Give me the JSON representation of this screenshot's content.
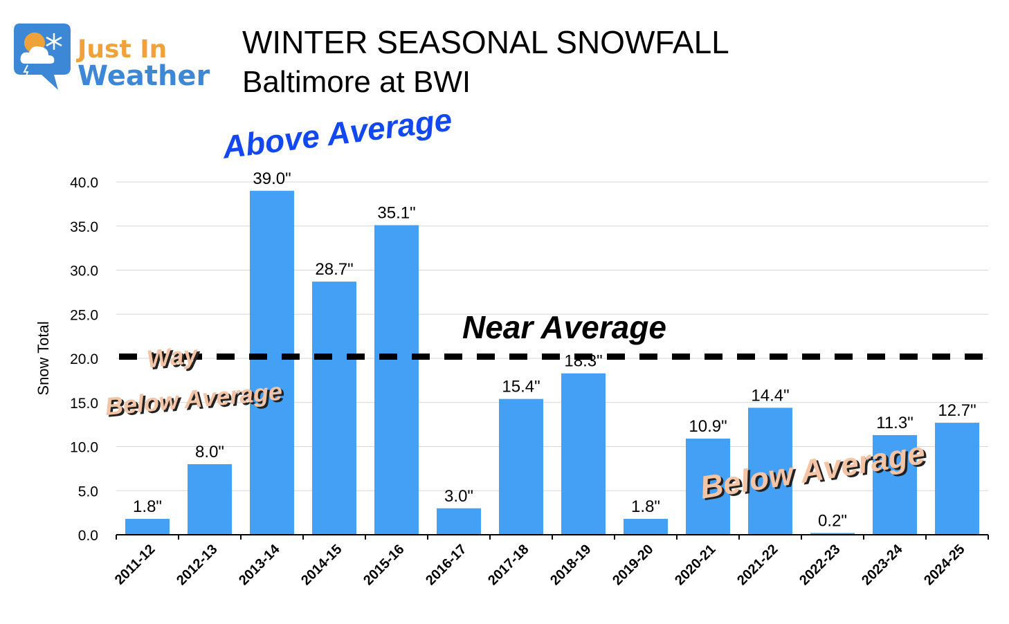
{
  "logo": {
    "line1": "Just In",
    "line2": "Weather",
    "color_orange": "#F0A23A",
    "color_blue": "#3C87D6"
  },
  "title": "WINTER SEASONAL SNOWFALL",
  "subtitle": "Baltimore at BWI",
  "annotations": {
    "above": "Above Average",
    "near": "Near Average",
    "way_line1": "Way",
    "way_line2": "Below Average",
    "below": "Below Average"
  },
  "chart_data": {
    "type": "bar",
    "title": "WINTER SEASONAL SNOWFALL",
    "subtitle": "Baltimore at BWI",
    "xlabel": "",
    "ylabel": "Snow Total",
    "ylim": [
      0,
      40
    ],
    "yticks": [
      "0.0",
      "5.0",
      "10.0",
      "15.0",
      "20.0",
      "25.0",
      "30.0",
      "35.0",
      "40.0"
    ],
    "grid": true,
    "categories": [
      "2011-12",
      "2012-13",
      "2013-14",
      "2014-15",
      "2015-16",
      "2016-17",
      "2017-18",
      "2018-19",
      "2019-20",
      "2020-21",
      "2021-22",
      "2022-23",
      "2023-24",
      "2024-25"
    ],
    "values": [
      1.8,
      8.0,
      39.0,
      28.7,
      35.1,
      3.0,
      15.4,
      18.3,
      1.8,
      10.9,
      14.4,
      0.2,
      11.3,
      12.7
    ],
    "data_labels": [
      "1.8\"",
      "8.0\"",
      "39.0\"",
      "28.7\"",
      "35.1\"",
      "3.0\"",
      "15.4\"",
      "18.3\"",
      "1.8\"",
      "10.9\"",
      "14.4\"",
      "0.2\"",
      "11.3\"",
      "12.7\""
    ],
    "average_line": 20.2,
    "bar_color": "#44A0F5"
  }
}
